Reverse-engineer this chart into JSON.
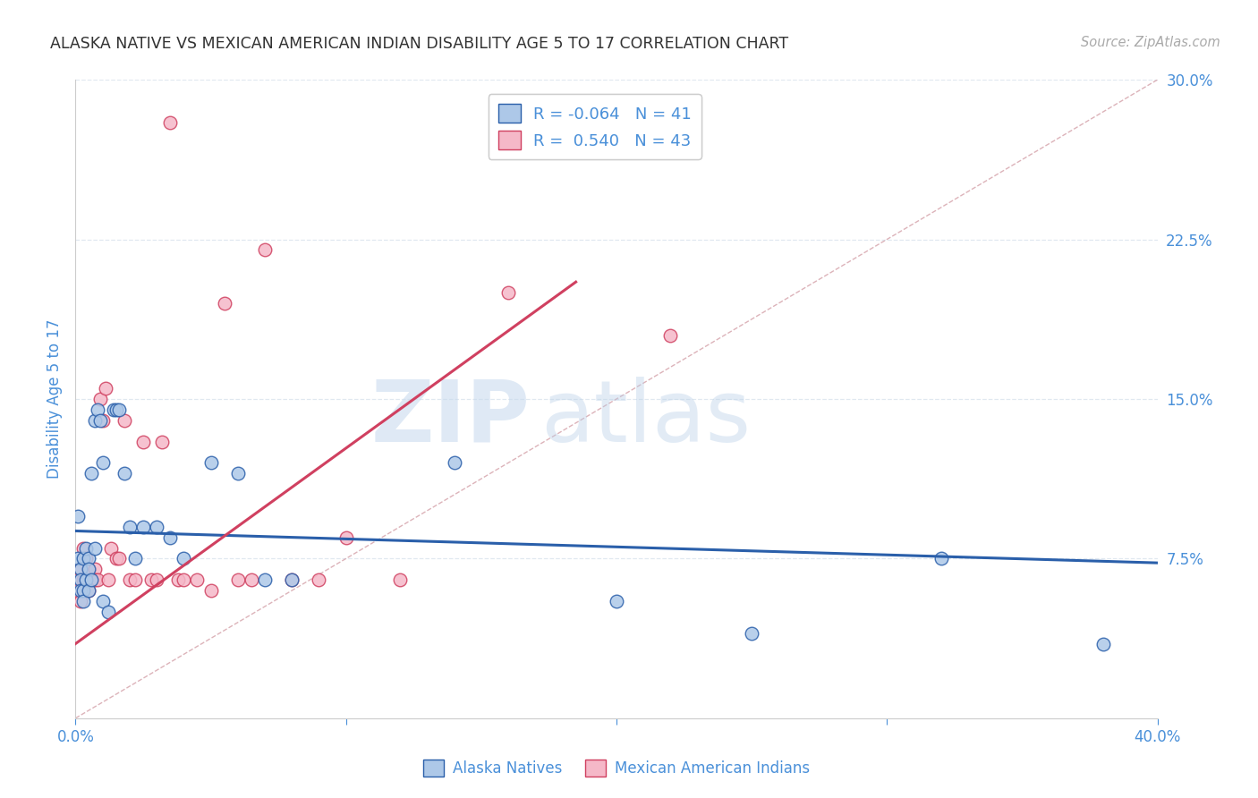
{
  "title": "ALASKA NATIVE VS MEXICAN AMERICAN INDIAN DISABILITY AGE 5 TO 17 CORRELATION CHART",
  "source": "Source: ZipAtlas.com",
  "ylabel": "Disability Age 5 to 17",
  "legend_bottom": [
    "Alaska Natives",
    "Mexican American Indians"
  ],
  "R_alaska": -0.064,
  "N_alaska": 41,
  "R_mexican": 0.54,
  "N_mexican": 43,
  "alaska_color": "#adc8e8",
  "mexican_color": "#f5b8c8",
  "alaska_line_color": "#2a5faa",
  "mexican_line_color": "#d04060",
  "axis_color": "#4a90d9",
  "xmin": 0.0,
  "xmax": 0.4,
  "ymin": 0.0,
  "ymax": 0.3,
  "yticks_right": [
    0.075,
    0.15,
    0.225,
    0.3
  ],
  "alaska_x": [
    0.001,
    0.001,
    0.002,
    0.002,
    0.002,
    0.003,
    0.003,
    0.003,
    0.004,
    0.004,
    0.005,
    0.005,
    0.005,
    0.006,
    0.006,
    0.007,
    0.007,
    0.008,
    0.009,
    0.01,
    0.01,
    0.012,
    0.014,
    0.015,
    0.016,
    0.018,
    0.02,
    0.022,
    0.025,
    0.03,
    0.035,
    0.04,
    0.05,
    0.06,
    0.07,
    0.08,
    0.14,
    0.2,
    0.25,
    0.32,
    0.38
  ],
  "alaska_y": [
    0.095,
    0.075,
    0.07,
    0.065,
    0.06,
    0.075,
    0.06,
    0.055,
    0.08,
    0.065,
    0.075,
    0.07,
    0.06,
    0.115,
    0.065,
    0.08,
    0.14,
    0.145,
    0.14,
    0.12,
    0.055,
    0.05,
    0.145,
    0.145,
    0.145,
    0.115,
    0.09,
    0.075,
    0.09,
    0.09,
    0.085,
    0.075,
    0.12,
    0.115,
    0.065,
    0.065,
    0.12,
    0.055,
    0.04,
    0.075,
    0.035
  ],
  "mexican_x": [
    0.001,
    0.001,
    0.002,
    0.002,
    0.003,
    0.003,
    0.004,
    0.004,
    0.005,
    0.005,
    0.006,
    0.007,
    0.007,
    0.008,
    0.009,
    0.01,
    0.011,
    0.012,
    0.013,
    0.015,
    0.016,
    0.018,
    0.02,
    0.022,
    0.025,
    0.028,
    0.03,
    0.032,
    0.035,
    0.038,
    0.04,
    0.045,
    0.05,
    0.055,
    0.06,
    0.065,
    0.07,
    0.08,
    0.09,
    0.1,
    0.12,
    0.16,
    0.22
  ],
  "mexican_y": [
    0.065,
    0.06,
    0.055,
    0.07,
    0.08,
    0.065,
    0.075,
    0.065,
    0.07,
    0.06,
    0.065,
    0.07,
    0.065,
    0.065,
    0.15,
    0.14,
    0.155,
    0.065,
    0.08,
    0.075,
    0.075,
    0.14,
    0.065,
    0.065,
    0.13,
    0.065,
    0.065,
    0.13,
    0.28,
    0.065,
    0.065,
    0.065,
    0.06,
    0.195,
    0.065,
    0.065,
    0.22,
    0.065,
    0.065,
    0.085,
    0.065,
    0.2,
    0.18
  ],
  "alaska_trend_x0": 0.0,
  "alaska_trend_x1": 0.4,
  "alaska_trend_y0": 0.088,
  "alaska_trend_y1": 0.073,
  "mexican_trend_x0": 0.0,
  "mexican_trend_x1": 0.185,
  "mexican_trend_y0": 0.035,
  "mexican_trend_y1": 0.205,
  "ref_line_color": "#d4a0a8",
  "watermark_zip": "ZIP",
  "watermark_atlas": "atlas",
  "watermark_color": "#c8ddf0",
  "grid_color": "#e0e8f0",
  "background_color": "#ffffff",
  "tick_label_visible": [
    0.0,
    0.4
  ],
  "tick_minor": [
    0.1,
    0.2,
    0.3
  ]
}
